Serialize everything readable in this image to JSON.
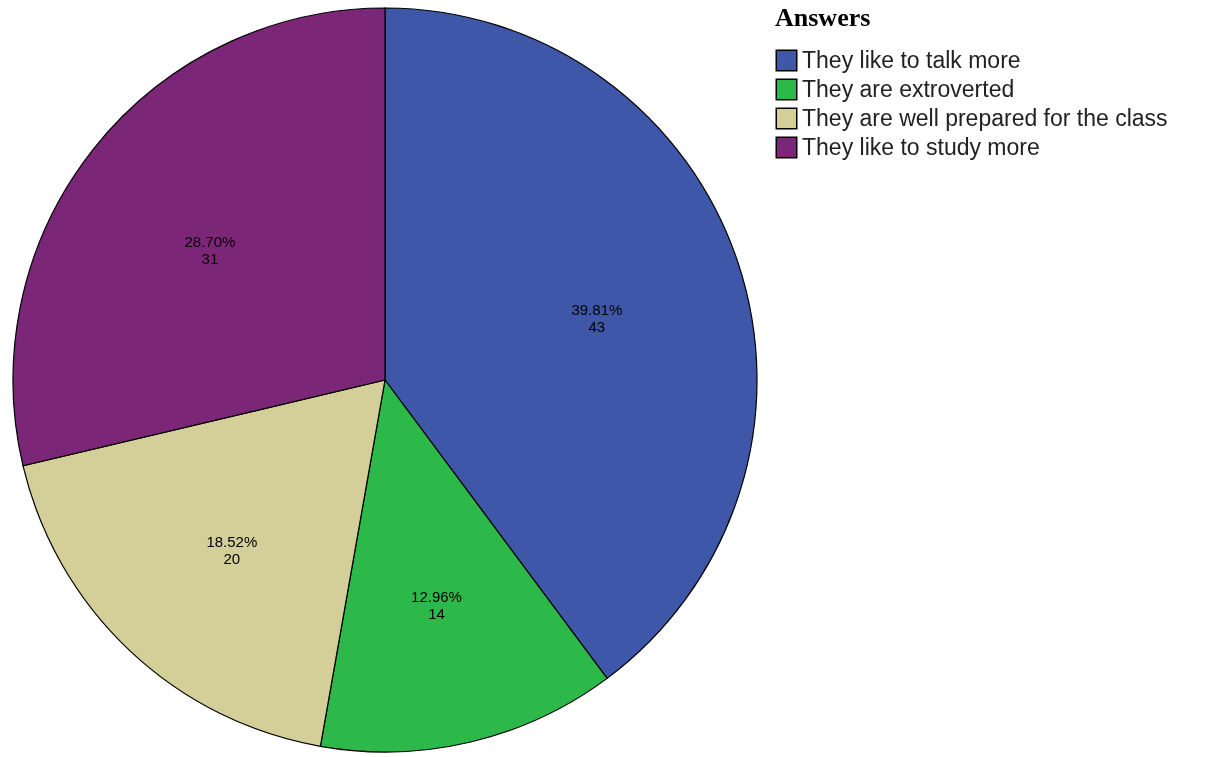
{
  "chart_data": {
    "type": "pie",
    "legend_title": "Answers",
    "categories": [
      "They like to talk more",
      "They are extroverted",
      "They are well prepared for the class",
      "They like to study more"
    ],
    "values": [
      43,
      14,
      20,
      31
    ],
    "colors": [
      "#3f57a8",
      "#2db84a",
      "#d4cf98",
      "#7b2677"
    ],
    "value_labels": [
      "39.81%\n43",
      "12.96%\n14",
      "18.52%\n20",
      "28.70%\n31"
    ],
    "legend": "right"
  }
}
